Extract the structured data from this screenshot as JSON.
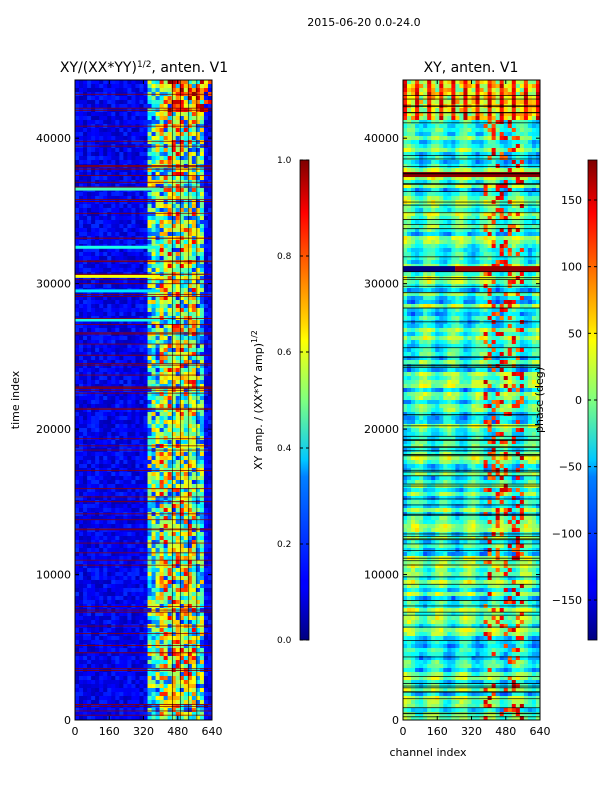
{
  "figure": {
    "suptitle": "2015-06-20 0.0-24.0"
  },
  "chart_data": [
    {
      "type": "heatmap",
      "title_main": "XY/(XX*YY)",
      "title_sup": "1/2",
      "title_suffix": ", anten. V1",
      "xlabel": "",
      "ylabel": "time index",
      "xlim": [
        0,
        640
      ],
      "ylim": [
        0,
        44000
      ],
      "xticks": [
        0,
        160,
        320,
        480,
        640
      ],
      "yticks": [
        0,
        10000,
        20000,
        30000,
        40000
      ],
      "xtick_labels": [
        "0",
        "160",
        "320",
        "480",
        "640"
      ],
      "ytick_labels": [
        "0",
        "10000",
        "20000",
        "30000",
        "40000"
      ],
      "colorbar": {
        "label_main": "XY amp. / (XX*YY amp)",
        "label_sup": "1/2",
        "range": [
          0.0,
          1.0
        ],
        "ticks": [
          0.0,
          0.2,
          0.4,
          0.6,
          0.8,
          1.0
        ],
        "tick_labels": [
          "0.0",
          "0.2",
          "0.4",
          "0.6",
          "0.8",
          "1.0"
        ],
        "colormap": "jet"
      }
    },
    {
      "type": "heatmap",
      "title_main": "XY, anten. V1",
      "xlabel": "channel index",
      "ylabel": "",
      "xlim": [
        0,
        640
      ],
      "ylim": [
        0,
        44000
      ],
      "xticks": [
        0,
        160,
        320,
        480,
        640
      ],
      "yticks": [
        0,
        10000,
        20000,
        30000,
        40000
      ],
      "xtick_labels": [
        "0",
        "160",
        "320",
        "480",
        "640"
      ],
      "ytick_labels": [
        "0",
        "10000",
        "20000",
        "30000",
        "40000"
      ],
      "colorbar": {
        "label_main": "phase (deg)",
        "range": [
          -180,
          180
        ],
        "ticks": [
          -150,
          -100,
          -50,
          0,
          50,
          100,
          150
        ],
        "tick_labels": [
          "−150",
          "−100",
          "−50",
          "0",
          "50",
          "100",
          "150"
        ],
        "colormap": "jet"
      }
    }
  ],
  "colors": {
    "jet_low": "#00007f",
    "jet_high": "#7f0000",
    "flag_line": "#8b0000",
    "axis": "#000000"
  }
}
